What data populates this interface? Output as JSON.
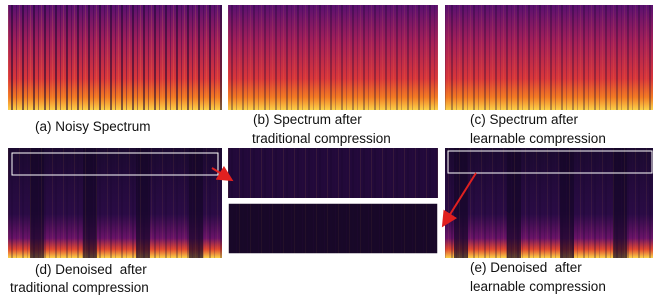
{
  "figure": {
    "panels": [
      {
        "caption_lines": [
          "(a) Noisy Spectrum"
        ]
      },
      {
        "caption_lines": [
          "(b) Spectrum after",
          "traditional compression"
        ]
      },
      {
        "caption_lines": [
          "(c) Spectrum after",
          "learnable compression"
        ]
      },
      {
        "caption_lines": [
          "(d) Denoised  after",
          "traditional compression"
        ]
      },
      {
        "caption_lines": [
          "(e) Denoised  after",
          "learnable compression"
        ]
      }
    ]
  }
}
